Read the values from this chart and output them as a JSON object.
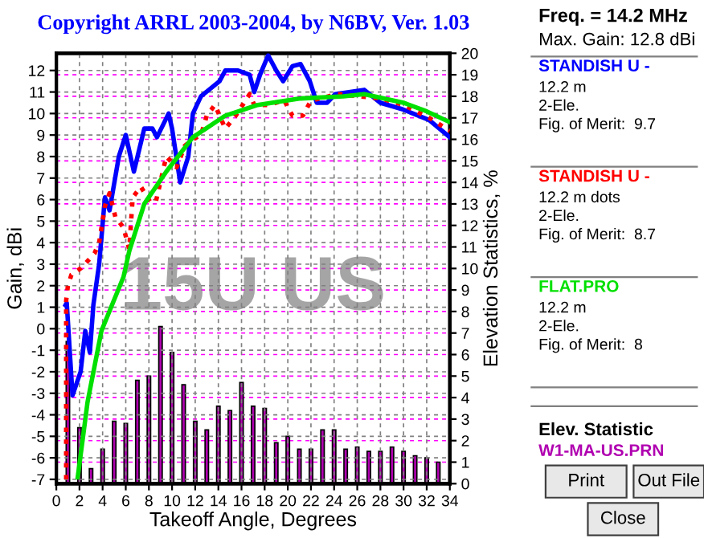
{
  "chart_data": {
    "type": "line",
    "title": "Copyright ARRL 2003-2004, by N6BV, Ver. 1.03",
    "xlabel": "Takeoff Angle, Degrees",
    "ylabel": "Gain, dBi",
    "y2label": "Elevation Statistics, %",
    "xlim": [
      0,
      34
    ],
    "xticks": [
      0,
      2,
      4,
      6,
      8,
      10,
      12,
      14,
      16,
      18,
      20,
      22,
      24,
      26,
      28,
      30,
      32,
      34
    ],
    "ylim": [
      -7.2,
      12.8
    ],
    "yticks": [
      -7,
      -6,
      -5,
      -4,
      -3,
      -2,
      -1,
      0,
      1,
      2,
      3,
      4,
      5,
      6,
      7,
      8,
      9,
      10,
      11,
      12
    ],
    "y2lim": [
      0,
      20
    ],
    "y2ticks": [
      0,
      1,
      2,
      3,
      4,
      5,
      6,
      7,
      8,
      9,
      10,
      11,
      12,
      13,
      14,
      15,
      16,
      17,
      18,
      19,
      20
    ],
    "grid": true,
    "legend": "right",
    "series": [
      {
        "name": "W1-MA-US.PRN",
        "type": "bar",
        "axis": "y2",
        "color": "#b000b0",
        "x": [
          1,
          2,
          3,
          4,
          5,
          6,
          7,
          8,
          9,
          10,
          11,
          12,
          13,
          14,
          15,
          16,
          17,
          18,
          19,
          20,
          21,
          22,
          23,
          24,
          25,
          26,
          27,
          28,
          29,
          30,
          31,
          32,
          33
        ],
        "values": [
          6.6,
          2.6,
          0.7,
          1.6,
          2.9,
          2.8,
          4.8,
          5.0,
          7.3,
          6.1,
          4.6,
          2.9,
          2.5,
          3.6,
          3.4,
          4.7,
          3.6,
          3.5,
          1.9,
          2.2,
          1.6,
          1.6,
          2.5,
          2.5,
          1.6,
          1.7,
          1.5,
          1.5,
          1.7,
          1.5,
          1.3,
          1.2,
          1.0
        ]
      },
      {
        "name": "STANDISH U -",
        "line_style": "solid",
        "color": "#0000ff",
        "x": [
          0.8,
          0.9,
          1.4,
          2.1,
          2.5,
          2.9,
          3.2,
          3.7,
          4.2,
          4.6,
          5.4,
          6.0,
          6.7,
          7.6,
          8.3,
          8.7,
          9.7,
          10.0,
          10.7,
          11.4,
          11.8,
          12.5,
          14.1,
          14.6,
          15.7,
          16.7,
          17.1,
          17.6,
          18.3,
          19.0,
          19.6,
          20.4,
          21.1,
          21.9,
          22.5,
          23.4,
          24.1,
          25.4,
          26.6,
          28.0,
          29.9,
          32.2,
          34.0
        ],
        "values": [
          1.1,
          1.2,
          -3.1,
          -2.0,
          -0.1,
          -1.1,
          1.1,
          3.0,
          6.1,
          5.5,
          8.0,
          9.0,
          7.3,
          9.3,
          9.3,
          8.9,
          10.0,
          9.3,
          6.8,
          8.0,
          10.0,
          10.8,
          11.5,
          12.0,
          12.0,
          11.8,
          11.0,
          11.8,
          12.7,
          12.0,
          11.5,
          12.2,
          12.3,
          11.5,
          10.5,
          10.5,
          10.9,
          11.0,
          11.1,
          10.5,
          10.2,
          9.7,
          8.9
        ]
      },
      {
        "name": "STANDISH U -",
        "line_style": "dotted",
        "color": "#ff0000",
        "x": [
          0.85,
          0.85,
          1.0,
          1.3,
          2.1,
          2.8,
          3.3,
          3.7,
          4.2,
          4.6,
          5.1,
          5.8,
          6.3,
          6.6,
          7.3,
          8.1,
          8.6,
          9.5,
          10.4,
          11.1,
          11.8,
          12.5,
          13.0,
          13.7,
          14.6,
          15.5,
          16.7,
          17.1,
          18.3,
          19.7,
          20.4,
          21.3,
          22.0,
          24.3,
          28.0,
          30.0,
          32.2,
          34.0
        ],
        "values": [
          -7.0,
          1.3,
          2.0,
          2.5,
          2.8,
          3.2,
          3.5,
          4.0,
          5.7,
          6.3,
          5.2,
          4.7,
          3.7,
          6.1,
          6.6,
          5.9,
          5.9,
          8.0,
          7.5,
          8.5,
          8.8,
          9.0,
          9.9,
          10.4,
          9.3,
          9.9,
          10.9,
          10.4,
          10.4,
          10.6,
          9.9,
          9.9,
          10.6,
          10.9,
          10.7,
          10.4,
          9.8,
          9.2
        ]
      },
      {
        "name": "FLAT.PRO",
        "line_style": "solid",
        "color": "#00e000",
        "x": [
          1.85,
          2.7,
          3.9,
          5.8,
          6.3,
          7.6,
          9.5,
          11.8,
          14.6,
          17.4,
          21.1,
          24.8,
          26.6,
          30.0,
          32.0,
          34.0
        ],
        "values": [
          -6.9,
          -3.4,
          -0.1,
          2.4,
          3.6,
          5.8,
          7.3,
          8.9,
          9.9,
          10.4,
          10.7,
          10.8,
          10.9,
          10.5,
          10.1,
          9.6
        ]
      }
    ],
    "annotations": [
      "Freq. = 14.2 MHz",
      "Max. Gain: 12.8 dBi",
      "12.2 m\n2-Ele.\nFig. of Merit:  9.7",
      "12.2 m dots\n2-Ele.\nFig. of Merit:  8.7",
      "12.2 m\n2-Ele.\nFig. of Merit:  8",
      "Elev. Statistic",
      "15U US",
      "Print",
      "Out File",
      "Close"
    ]
  }
}
